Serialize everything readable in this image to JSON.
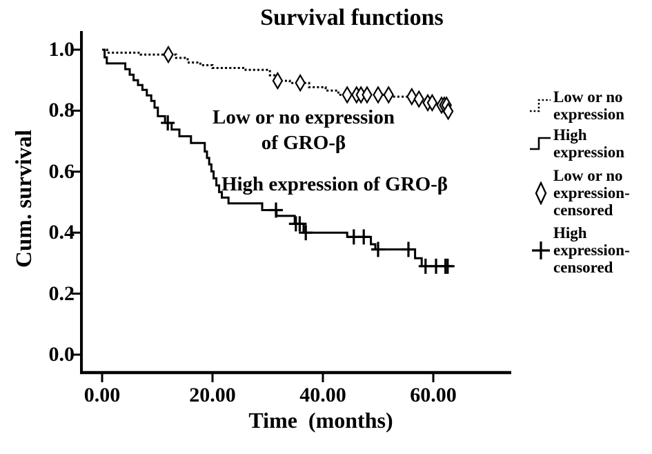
{
  "figure": {
    "background": "#ffffff",
    "foreground": "#000000"
  },
  "chart_data": {
    "type": "line",
    "subtype": "kaplan_meier_step",
    "title": "Survival functions",
    "xlabel": "Time  (months)",
    "ylabel": "Cum. survival",
    "xlim": [
      -3.9,
      74.1
    ],
    "ylim": [
      -0.06,
      1.06
    ],
    "grid": false,
    "legend_position": "right",
    "xticks": {
      "values": [
        0,
        20,
        40,
        60
      ],
      "labels": [
        "0.00",
        "20.00",
        "40.00",
        "60.00"
      ]
    },
    "yticks": {
      "values": [
        0,
        0.2,
        0.4,
        0.6,
        0.8,
        1.0
      ],
      "labels": [
        "0.0",
        "0.2",
        "0.4",
        "0.6",
        "0.8",
        "1.0"
      ]
    },
    "series": [
      {
        "name": "Low or no expression",
        "line": "dotted",
        "marker": "open-diamond",
        "steps": [
          [
            0,
            1.0
          ],
          [
            0.9,
            0.99
          ],
          [
            7,
            0.984
          ],
          [
            13.4,
            0.973
          ],
          [
            15.5,
            0.958
          ],
          [
            17.8,
            0.949
          ],
          [
            20,
            0.94
          ],
          [
            26,
            0.934
          ],
          [
            30.4,
            0.916
          ],
          [
            31.2,
            0.898
          ],
          [
            34,
            0.891
          ],
          [
            37.5,
            0.877
          ],
          [
            40.5,
            0.866
          ],
          [
            42.8,
            0.852
          ],
          [
            52.5,
            0.846
          ],
          [
            56.5,
            0.838
          ],
          [
            58.8,
            0.826
          ],
          [
            62.3,
            0.818
          ],
          [
            62.6,
            0.798
          ],
          [
            63.6,
            0.798
          ]
        ],
        "censored": [
          [
            12,
            0.984
          ],
          [
            31.8,
            0.898
          ],
          [
            35.9,
            0.891
          ],
          [
            44.4,
            0.852
          ],
          [
            46.1,
            0.852
          ],
          [
            46.9,
            0.852
          ],
          [
            48,
            0.852
          ],
          [
            50,
            0.852
          ],
          [
            51.9,
            0.852
          ],
          [
            56.1,
            0.846
          ],
          [
            57.4,
            0.838
          ],
          [
            59,
            0.826
          ],
          [
            59.8,
            0.826
          ],
          [
            61.5,
            0.818
          ],
          [
            62,
            0.818
          ],
          [
            62.4,
            0.818
          ],
          [
            62.7,
            0.798
          ]
        ]
      },
      {
        "name": "High expression",
        "line": "solid",
        "marker": "plus-cross",
        "steps": [
          [
            0,
            1.0
          ],
          [
            0.45,
            0.975
          ],
          [
            0.85,
            0.955
          ],
          [
            4.2,
            0.936
          ],
          [
            5,
            0.918
          ],
          [
            5.7,
            0.9
          ],
          [
            6.5,
            0.884
          ],
          [
            7.3,
            0.868
          ],
          [
            8.1,
            0.85
          ],
          [
            8.9,
            0.832
          ],
          [
            9.5,
            0.81
          ],
          [
            10.1,
            0.782
          ],
          [
            11.4,
            0.76
          ],
          [
            12.6,
            0.738
          ],
          [
            14,
            0.716
          ],
          [
            16.1,
            0.694
          ],
          [
            18.6,
            0.666
          ],
          [
            19,
            0.645
          ],
          [
            19.4,
            0.624
          ],
          [
            19.8,
            0.601
          ],
          [
            20.2,
            0.578
          ],
          [
            20.7,
            0.555
          ],
          [
            21.2,
            0.533
          ],
          [
            21.7,
            0.515
          ],
          [
            22.9,
            0.496
          ],
          [
            29,
            0.474
          ],
          [
            31.6,
            0.455
          ],
          [
            34.9,
            0.429
          ],
          [
            36.5,
            0.4
          ],
          [
            44.4,
            0.386
          ],
          [
            48.7,
            0.362
          ],
          [
            49.5,
            0.345
          ],
          [
            56.7,
            0.316
          ],
          [
            57.9,
            0.29
          ],
          [
            63.4,
            0.29
          ]
        ],
        "censored": [
          [
            11.9,
            0.76
          ],
          [
            31.5,
            0.474
          ],
          [
            35.1,
            0.429
          ],
          [
            35.8,
            0.429
          ],
          [
            36.9,
            0.4
          ],
          [
            45.6,
            0.386
          ],
          [
            47.4,
            0.386
          ],
          [
            50,
            0.345
          ],
          [
            55.5,
            0.345
          ],
          [
            58.6,
            0.29
          ],
          [
            60.5,
            0.29
          ],
          [
            62.2,
            0.29
          ],
          [
            62.6,
            0.29
          ]
        ]
      }
    ],
    "annotations": [
      {
        "id": "low",
        "lines": [
          "Low or no expression",
          "of GRO-β"
        ],
        "x": 36.5,
        "y": 0.8
      },
      {
        "id": "high",
        "lines": [
          "High expression of GRO-β"
        ],
        "x": 42,
        "y": 0.58
      }
    ]
  },
  "legend": {
    "entries": [
      {
        "glyph": "dotted-step-line",
        "label_lines": [
          "Low or no",
          "expression"
        ]
      },
      {
        "glyph": "solid-step-line",
        "label_lines": [
          "High",
          "expression"
        ]
      },
      {
        "glyph": "open-diamond",
        "label_lines": [
          "Low or no",
          "expression-",
          "censored"
        ]
      },
      {
        "glyph": "plus-cross",
        "label_lines": [
          "High",
          "expression-",
          "censored"
        ]
      }
    ]
  }
}
